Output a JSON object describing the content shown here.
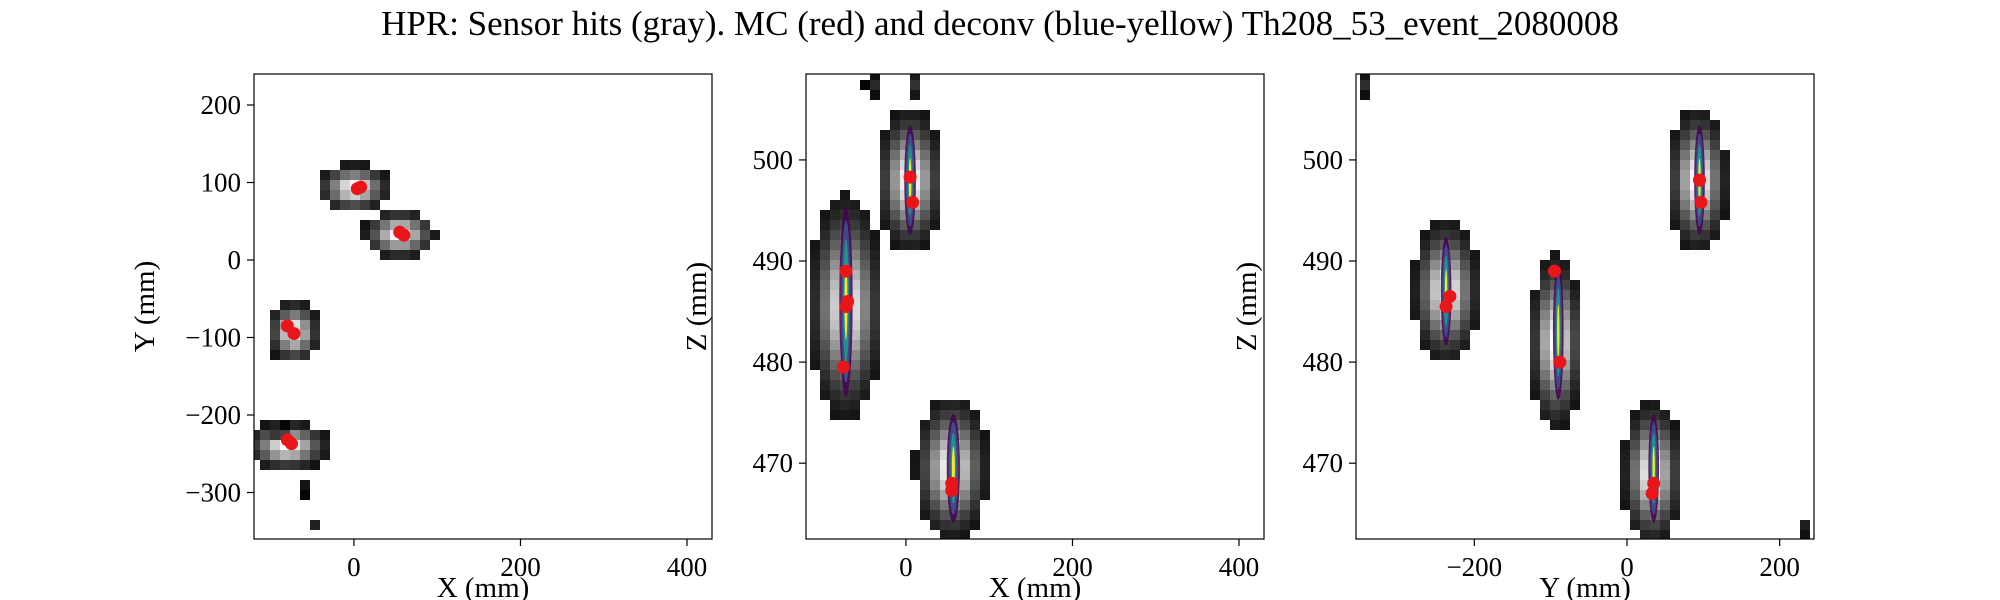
{
  "figure": {
    "title": "HPR: Sensor hits (gray). MC (red) and deconv (blue-yellow) Th208_53_event_2080008"
  },
  "chart_data": [
    {
      "type": "heatmap",
      "xlabel": "X (mm)",
      "ylabel": "Y (mm)",
      "xlim": [
        -120,
        430
      ],
      "ylim": [
        -360,
        240
      ],
      "xticks": [
        0,
        200,
        400
      ],
      "yticks": [
        200,
        100,
        0,
        -100,
        -200,
        -300
      ],
      "ytick_labels": [
        "200",
        "100",
        "0",
        "−100",
        "−200",
        "−300"
      ],
      "grid": false,
      "sensor_hits": [
        {
          "x": 0,
          "y": 93,
          "sx": 28,
          "sy": 20,
          "peak": 1.0
        },
        {
          "x": 55,
          "y": 33,
          "sx": 28,
          "sy": 20,
          "peak": 1.0
        },
        {
          "x": -72,
          "y": -93,
          "sx": 20,
          "sy": 26,
          "peak": 1.0
        },
        {
          "x": -80,
          "y": -240,
          "sx": 32,
          "sy": 20,
          "peak": 1.0
        },
        {
          "x": -88,
          "y": -225,
          "sx": 10,
          "sy": 8,
          "peak": 0.35
        },
        {
          "x": -60,
          "y": -295,
          "sx": 6,
          "sy": 6,
          "peak": 0.15
        },
        {
          "x": -45,
          "y": -340,
          "sx": 6,
          "sy": 6,
          "peak": 0.15
        }
      ],
      "mc_points": [
        {
          "x": 8,
          "y": 94
        },
        {
          "x": 4,
          "y": 92
        },
        {
          "x": 55,
          "y": 36
        },
        {
          "x": 60,
          "y": 32
        },
        {
          "x": -80,
          "y": -85
        },
        {
          "x": -72,
          "y": -95
        },
        {
          "x": -75,
          "y": -237
        },
        {
          "x": -80,
          "y": -232
        }
      ]
    },
    {
      "type": "heatmap",
      "xlabel": "X (mm)",
      "ylabel": "Z (mm)",
      "xlim": [
        -120,
        430
      ],
      "ylim": [
        462.5,
        508.5
      ],
      "xticks": [
        0,
        200,
        400
      ],
      "yticks": [
        500,
        490,
        480,
        470
      ],
      "ytick_labels": [
        "500",
        "490",
        "480",
        "470"
      ],
      "grid": false,
      "sensor_hits": [
        {
          "x": 5,
          "y": 498,
          "sx": 25,
          "sy": 4.5,
          "peak": 1.0
        },
        {
          "x": -72,
          "y": 485.5,
          "sx": 28,
          "sy": 7,
          "peak": 1.0
        },
        {
          "x": 55,
          "y": 469.5,
          "sx": 28,
          "sy": 4.5,
          "peak": 1.0
        },
        {
          "x": -40,
          "y": 507.5,
          "sx": 6,
          "sy": 1.0,
          "peak": 0.2
        },
        {
          "x": 12,
          "y": 507.5,
          "sx": 6,
          "sy": 1.2,
          "peak": 0.2
        }
      ],
      "deconv_tracks": [
        {
          "x": 5,
          "y": 498,
          "sx": 7,
          "sy": 4
        },
        {
          "x": -72,
          "y": 486,
          "sx": 8,
          "sy": 7
        },
        {
          "x": 57,
          "y": 469.5,
          "sx": 8,
          "sy": 4
        }
      ],
      "mc_points": [
        {
          "x": 5,
          "y": 498.3
        },
        {
          "x": 8,
          "y": 495.8
        },
        {
          "x": -72,
          "y": 489
        },
        {
          "x": -70,
          "y": 486
        },
        {
          "x": -72,
          "y": 485.5
        },
        {
          "x": -75,
          "y": 479.5
        },
        {
          "x": 55,
          "y": 468
        },
        {
          "x": 55,
          "y": 467.3
        }
      ]
    },
    {
      "type": "heatmap",
      "xlabel": "Y (mm)",
      "ylabel": "Z (mm)",
      "xlim": [
        -355,
        245
      ],
      "ylim": [
        462.5,
        508.5
      ],
      "xticks": [
        -200,
        0,
        200
      ],
      "xtick_labels": [
        "−200",
        "0",
        "200"
      ],
      "yticks": [
        500,
        490,
        480,
        470
      ],
      "ytick_labels": [
        "500",
        "490",
        "480",
        "470"
      ],
      "grid": false,
      "sensor_hits": [
        {
          "x": 93,
          "y": 498,
          "sx": 25,
          "sy": 4.5,
          "peak": 1.0
        },
        {
          "x": -237,
          "y": 487,
          "sx": 28,
          "sy": 4.5,
          "peak": 1.0
        },
        {
          "x": -93,
          "y": 482,
          "sx": 22,
          "sy": 5.5,
          "peak": 1.0
        },
        {
          "x": 33,
          "y": 469,
          "sx": 25,
          "sy": 4.5,
          "peak": 1.0
        },
        {
          "x": -345,
          "y": 507.5,
          "sx": 6,
          "sy": 1.0,
          "peak": 0.2
        },
        {
          "x": 235,
          "y": 463.5,
          "sx": 6,
          "sy": 0.6,
          "peak": 0.2
        }
      ],
      "deconv_tracks": [
        {
          "x": 95,
          "y": 498,
          "sx": 7,
          "sy": 4
        },
        {
          "x": -237,
          "y": 487,
          "sx": 7,
          "sy": 4
        },
        {
          "x": -90,
          "y": 483,
          "sx": 7,
          "sy": 5
        },
        {
          "x": 35,
          "y": 469.5,
          "sx": 7,
          "sy": 4
        }
      ],
      "mc_points": [
        {
          "x": 95,
          "y": 498
        },
        {
          "x": 97,
          "y": 495.8
        },
        {
          "x": -232,
          "y": 486.5
        },
        {
          "x": -237,
          "y": 485.5
        },
        {
          "x": -95,
          "y": 489
        },
        {
          "x": -88,
          "y": 480
        },
        {
          "x": 35,
          "y": 468
        },
        {
          "x": 33,
          "y": 467
        }
      ]
    }
  ]
}
